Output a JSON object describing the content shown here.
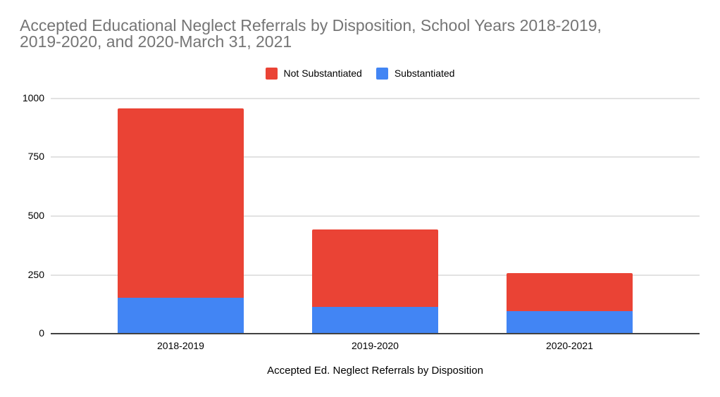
{
  "chart_data": {
    "type": "bar",
    "stacked": true,
    "title": "Accepted Educational Neglect Referrals by Disposition, School Years 2018-2019, 2019-2020, and 2020-March 31, 2021",
    "title_lines": [
      "Accepted Educational Neglect Referrals by Disposition, School Years 2018-2019,",
      "2019-2020, and 2020-March 31, 2021"
    ],
    "xlabel": "Accepted Ed. Neglect Referrals by Disposition",
    "ylabel": "",
    "categories": [
      "2018-2019",
      "2019-2020",
      "2020-2021"
    ],
    "series": [
      {
        "name": "Not Substantiated",
        "color": "#EA4335",
        "values": [
          806,
          328,
          163
        ]
      },
      {
        "name": "Substantiated",
        "color": "#4285F4",
        "values": [
          150,
          112,
          93
        ]
      }
    ],
    "stack_bottom_first": [
      "Substantiated",
      "Not Substantiated"
    ],
    "yticks": [
      0,
      250,
      500,
      750,
      1000
    ],
    "ylim": [
      0,
      1000
    ],
    "grid": true,
    "legend_position": "top",
    "colors": {
      "title_text": "#757575",
      "axis_text": "#000000",
      "gridline": "#E2E2E2",
      "axis_line": "#424242",
      "background": "#FFFFFF"
    }
  }
}
